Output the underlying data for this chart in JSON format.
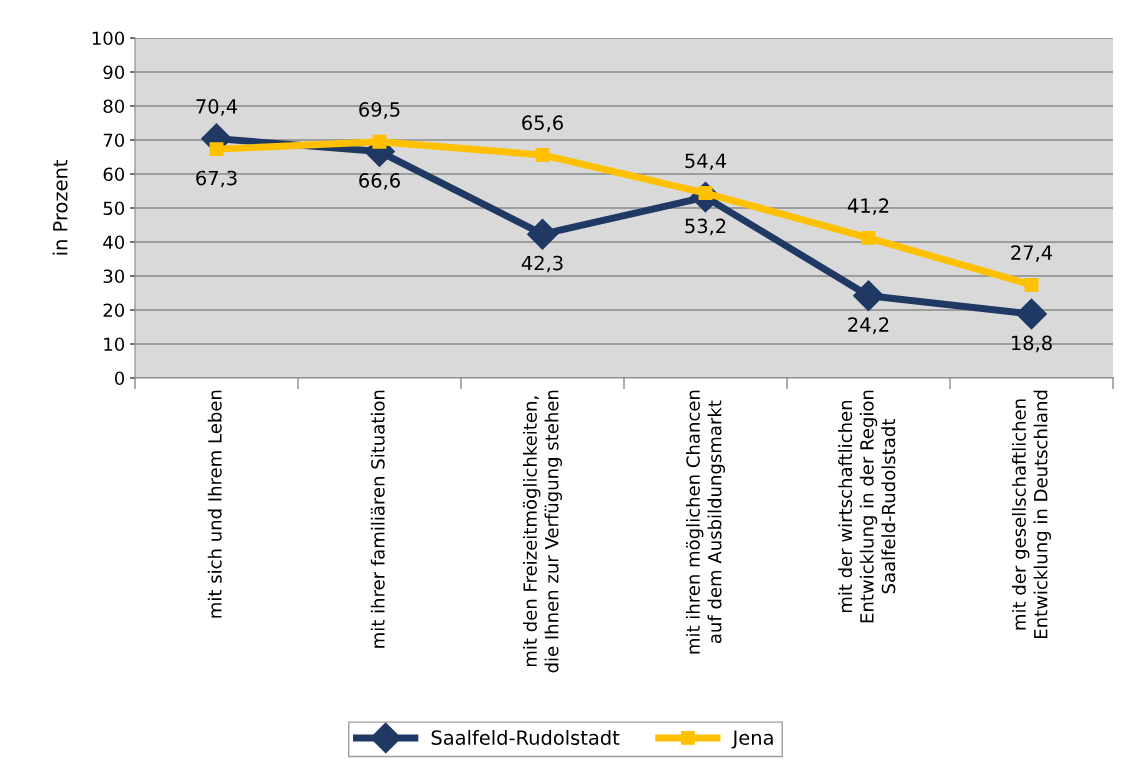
{
  "chart_data": {
    "type": "line",
    "ylabel": "in Prozent",
    "categories": [
      "mit sich und Ihrem Leben",
      "mit ihrer familiären Situation",
      "mit den Freizeitmöglichkeiten,\ndie Ihnen zur Verfügung stehen",
      "mit ihren möglichen Chancen\nauf dem Ausbildungsmarkt",
      "mit der wirtschaftlichen\nEntwicklung in der Region\nSaalfeld-Rudolstadt",
      "mit der gesellschaftlichen\nEntwicklung in Deutschland"
    ],
    "series": [
      {
        "name": "Saalfeld-Rudolstadt",
        "color": "#1f3864",
        "marker": "diamond",
        "values": [
          70.4,
          66.6,
          42.3,
          53.2,
          24.2,
          18.8
        ],
        "value_labels": [
          "70,4",
          "66,6",
          "42,3",
          "53,2",
          "24,2",
          "18,8"
        ]
      },
      {
        "name": "Jena",
        "color": "#ffc000",
        "marker": "square",
        "values": [
          67.3,
          69.5,
          65.6,
          54.4,
          41.2,
          27.4
        ],
        "value_labels": [
          "67,3",
          "69,5",
          "65,6",
          "54,4",
          "41,2",
          "27,4"
        ]
      }
    ],
    "ylim": [
      0,
      100
    ],
    "yticks": [
      0,
      10,
      20,
      30,
      40,
      50,
      60,
      70,
      80,
      90,
      100
    ],
    "grid": "y",
    "legend": "bottom",
    "line_style": "solid"
  }
}
